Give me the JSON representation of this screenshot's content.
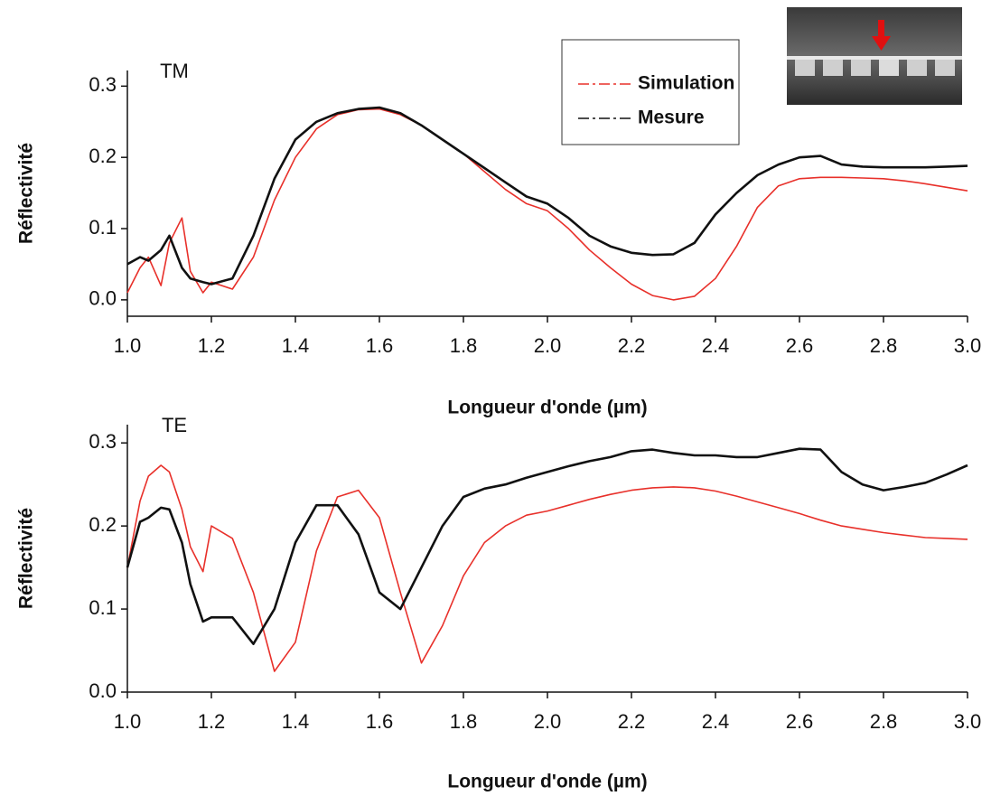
{
  "chart_data": [
    {
      "type": "line",
      "annotation": "TM",
      "xlabel": "Longueur d'onde (µm)",
      "ylabel": "Réflectivité",
      "x": [
        1.0,
        1.03,
        1.05,
        1.08,
        1.1,
        1.13,
        1.15,
        1.18,
        1.2,
        1.25,
        1.3,
        1.35,
        1.4,
        1.45,
        1.5,
        1.55,
        1.6,
        1.65,
        1.7,
        1.75,
        1.8,
        1.85,
        1.9,
        1.95,
        2.0,
        2.05,
        2.1,
        2.15,
        2.2,
        2.25,
        2.3,
        2.35,
        2.4,
        2.45,
        2.5,
        2.55,
        2.6,
        2.65,
        2.7,
        2.75,
        2.8,
        2.85,
        2.9,
        2.95,
        3.0
      ],
      "series": [
        {
          "name": "Simulation",
          "color": "#e8302a",
          "values": [
            0.01,
            0.045,
            0.06,
            0.02,
            0.08,
            0.115,
            0.04,
            0.01,
            0.025,
            0.015,
            0.06,
            0.14,
            0.2,
            0.24,
            0.26,
            0.267,
            0.268,
            0.26,
            0.245,
            0.225,
            0.205,
            0.18,
            0.155,
            0.135,
            0.125,
            0.1,
            0.07,
            0.045,
            0.022,
            0.006,
            0.0,
            0.005,
            0.03,
            0.075,
            0.13,
            0.16,
            0.17,
            0.172,
            0.172,
            0.171,
            0.17,
            0.167,
            0.163,
            0.158,
            0.153
          ]
        },
        {
          "name": "Mesure",
          "color": "#111111",
          "values": [
            0.05,
            0.06,
            0.055,
            0.07,
            0.09,
            0.045,
            0.03,
            0.025,
            0.022,
            0.03,
            0.09,
            0.17,
            0.225,
            0.25,
            0.262,
            0.268,
            0.27,
            0.262,
            0.245,
            0.225,
            0.205,
            0.185,
            0.165,
            0.145,
            0.135,
            0.115,
            0.09,
            0.075,
            0.066,
            0.063,
            0.064,
            0.08,
            0.12,
            0.15,
            0.175,
            0.19,
            0.2,
            0.202,
            0.19,
            0.187,
            0.186,
            0.186,
            0.186,
            0.187,
            0.188
          ]
        }
      ],
      "xlim": [
        1.0,
        3.0
      ],
      "xticks": [
        {
          "value": 1,
          "label": "1.0"
        },
        1.2,
        1.4,
        1.6,
        1.8,
        {
          "value": 2,
          "label": "2.0"
        },
        2.2,
        2.4,
        2.6,
        2.8,
        {
          "value": 3,
          "label": "3.0"
        }
      ],
      "ylim": [
        -0.023,
        0.322
      ],
      "yticks": [
        {
          "value": 0,
          "label": "0.0"
        },
        0.1,
        0.2,
        0.3
      ],
      "legend": "top-right"
    },
    {
      "type": "line",
      "annotation": "TE",
      "xlabel": "Longueur d'onde (µm)",
      "ylabel": "Réflectivité",
      "x": [
        1.0,
        1.03,
        1.05,
        1.08,
        1.1,
        1.13,
        1.15,
        1.18,
        1.2,
        1.25,
        1.3,
        1.35,
        1.4,
        1.45,
        1.5,
        1.55,
        1.6,
        1.65,
        1.7,
        1.75,
        1.8,
        1.85,
        1.9,
        1.95,
        2.0,
        2.05,
        2.1,
        2.15,
        2.2,
        2.25,
        2.3,
        2.35,
        2.4,
        2.45,
        2.5,
        2.55,
        2.6,
        2.65,
        2.7,
        2.75,
        2.8,
        2.85,
        2.9,
        2.95,
        3.0
      ],
      "series": [
        {
          "color": "#e8302a",
          "values": [
            0.15,
            0.23,
            0.26,
            0.273,
            0.265,
            0.22,
            0.175,
            0.145,
            0.2,
            0.185,
            0.12,
            0.025,
            0.06,
            0.17,
            0.235,
            0.243,
            0.21,
            0.12,
            0.035,
            0.08,
            0.14,
            0.18,
            0.2,
            0.213,
            0.218,
            0.225,
            0.232,
            0.238,
            0.243,
            0.246,
            0.247,
            0.246,
            0.242,
            0.236,
            0.229,
            0.222,
            0.215,
            0.207,
            0.2,
            0.196,
            0.192,
            0.189,
            0.186,
            0.185,
            0.184
          ]
        },
        {
          "color": "#111111",
          "values": [
            0.15,
            0.205,
            0.21,
            0.222,
            0.22,
            0.18,
            0.13,
            0.085,
            0.09,
            0.09,
            0.058,
            0.1,
            0.18,
            0.225,
            0.225,
            0.19,
            0.12,
            0.1,
            0.15,
            0.2,
            0.235,
            0.245,
            0.25,
            0.258,
            0.265,
            0.272,
            0.278,
            0.283,
            0.29,
            0.292,
            0.288,
            0.285,
            0.285,
            0.283,
            0.283,
            0.288,
            0.293,
            0.292,
            0.265,
            0.25,
            0.243,
            0.247,
            0.252,
            0.262,
            0.273
          ]
        }
      ],
      "xlim": [
        1.0,
        3.0
      ],
      "xticks": [
        {
          "value": 1,
          "label": "1.0"
        },
        1.2,
        1.4,
        1.6,
        1.8,
        {
          "value": 2,
          "label": "2.0"
        },
        2.2,
        2.4,
        2.6,
        2.8,
        {
          "value": 3,
          "label": "3.0"
        }
      ],
      "ylim": [
        0,
        0.322
      ],
      "yticks": [
        {
          "value": 0,
          "label": "0.0"
        },
        0.1,
        0.2,
        0.3
      ]
    }
  ]
}
